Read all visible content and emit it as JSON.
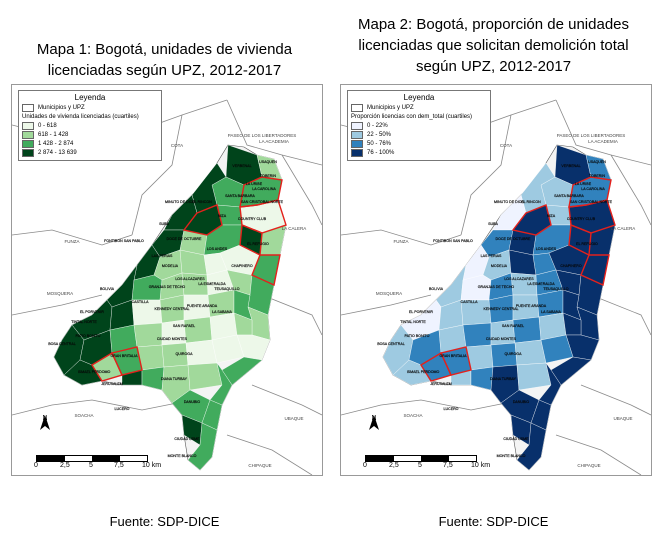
{
  "maps": [
    {
      "title_line1": "Mapa 1: Bogotá, unidades de vivienda",
      "title_line2": "licenciadas según UPZ, 2012-2017",
      "legend": {
        "title": "Leyenda",
        "municipios": "Municipios y UPZ",
        "subtitle": "Unidades de vivienda licenciadas (cuartiles)",
        "classes": [
          {
            "label": "0 - 618",
            "color": "#edf8e9"
          },
          {
            "label": "618 - 1 428",
            "color": "#a1d99b"
          },
          {
            "label": "1 428 - 2 874",
            "color": "#41ab5d"
          },
          {
            "label": "2 874 - 13 639",
            "color": "#00441b"
          }
        ]
      },
      "north": "N",
      "scale": {
        "t0": "0",
        "t1": "2,5",
        "t2": "5",
        "t3": "7,5",
        "t4": "10 km"
      },
      "source": "Fuente: SDP-DICE"
    },
    {
      "title_line1": "Mapa 2: Bogotá, proporción de unidades",
      "title_line2": "licenciadas que solicitan demolición total",
      "title_line3": "según UPZ, 2012-2017",
      "legend": {
        "title": "Leyenda",
        "municipios": "Municipios y UPZ",
        "subtitle": "Proporción licencias con dem_total (cuartiles)",
        "classes": [
          {
            "label": "0 - 22%",
            "color": "#eff3ff"
          },
          {
            "label": "22 - 50%",
            "color": "#9ecae1"
          },
          {
            "label": "50 - 76%",
            "color": "#3182bd"
          },
          {
            "label": "76 - 100%",
            "color": "#08306b"
          }
        ]
      },
      "north": "N",
      "scale": {
        "t0": "0",
        "t1": "2,5",
        "t2": "5",
        "t3": "7,5",
        "t4": "10 km"
      },
      "source": "Fuente: SDP-DICE"
    }
  ],
  "map_labels": {
    "outside": [
      "COTA",
      "FUNZA",
      "MOSQUERA",
      "SOACHA",
      "UBAQUE",
      "CHIPAQUE",
      "LA CALERA",
      "PASEO DE LOS LIBERTADORES",
      "LA ACADEMIA"
    ],
    "upz": [
      "VERBENAL",
      "TOBERIN",
      "LA URIBE",
      "SUBA",
      "EL RINCON",
      "NIZA",
      "COUNTRY CLUB",
      "LOS ANDES",
      "EL REFUGIO",
      "MODELIA",
      "FONTIBON SAN PABLO",
      "GRANJAS DE TECHO",
      "KENNEDY CENTRAL",
      "TINTAL NORTE",
      "PATIO BONITO",
      "BOSA CENTRAL",
      "EL PORVENIR",
      "ISMAEL PERDOMO",
      "JERUSALEM",
      "LUCERO",
      "MONTE BLANCO",
      "CIUDAD USME",
      "CIUDAD MONTES",
      "PUENTE ARANDA",
      "LA SABANA",
      "SAN RAFAEL",
      "TEUSAQUILLO",
      "CHAPINERO",
      "QUIROGA",
      "DIANA TURBAY",
      "CASTILLA",
      "DANUBIO",
      "GRAN BRITALIA",
      "BOLIVIA",
      "MINUTO DE DIOS",
      "LA ESMERALDA",
      "LAS FERIAS",
      "DOCE DE OCTUBRE",
      "LOS ALCAZARES",
      "SANTA BARBARA",
      "USAQUEN",
      "LA CAROLINA",
      "SAN CRISTOBAL NORTE"
    ]
  }
}
